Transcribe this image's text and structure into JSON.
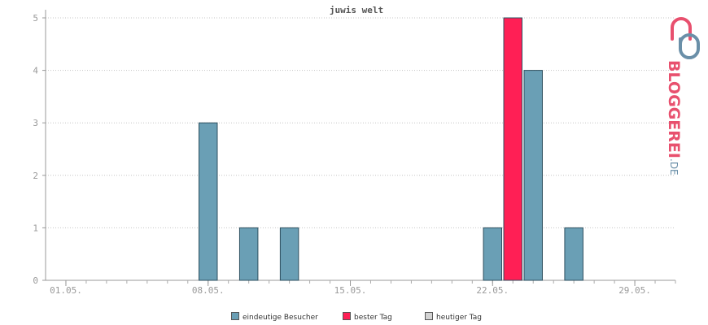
{
  "chart_data": {
    "type": "bar",
    "title": "juwis welt",
    "xlabel": "",
    "ylabel": "",
    "x_tick_labels": [
      "01.05.",
      "08.05.",
      "15.05.",
      "22.05.",
      "29.05."
    ],
    "x_tick_days": [
      1,
      8,
      15,
      22,
      29
    ],
    "x_range": [
      0,
      31
    ],
    "ylim": [
      0,
      5
    ],
    "y_ticks": [
      "0",
      "1",
      "2",
      "3",
      "4",
      "5"
    ],
    "grid": true,
    "legend_position": "bottom-center",
    "series": [
      {
        "name": "eindeutige Besucher",
        "color": "#6a9fb5",
        "points": [
          {
            "day": 8,
            "value": 3
          },
          {
            "day": 10,
            "value": 1
          },
          {
            "day": 12,
            "value": 1
          },
          {
            "day": 22,
            "value": 1
          },
          {
            "day": 24,
            "value": 4
          },
          {
            "day": 26,
            "value": 1
          }
        ]
      },
      {
        "name": "bester Tag",
        "color": "#ff1f55",
        "points": [
          {
            "day": 23,
            "value": 5
          }
        ]
      },
      {
        "name": "heutiger Tag",
        "color": "#d3d3d3",
        "points": []
      }
    ]
  },
  "brand": {
    "text": "BLOGGEREI",
    "suffix": ".DE"
  }
}
